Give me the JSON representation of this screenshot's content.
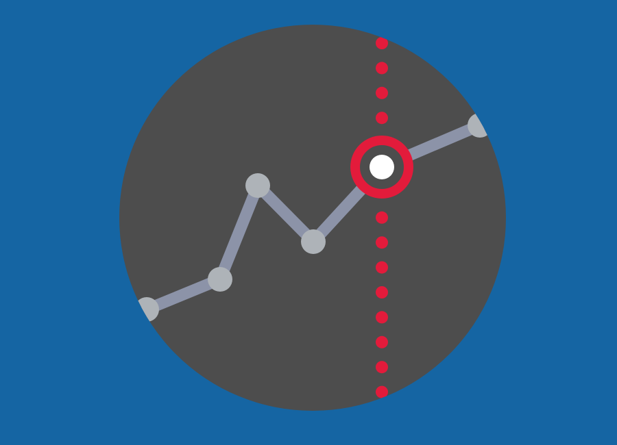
{
  "icon": {
    "name": "line-chart-highlight-icon",
    "colors": {
      "background": "#1565a3",
      "disc": "#4d4d4d",
      "line": "#8c93a8",
      "point": "#aeb3b8",
      "marker": "#e31b3b",
      "marker_center": "#ffffff"
    }
  }
}
